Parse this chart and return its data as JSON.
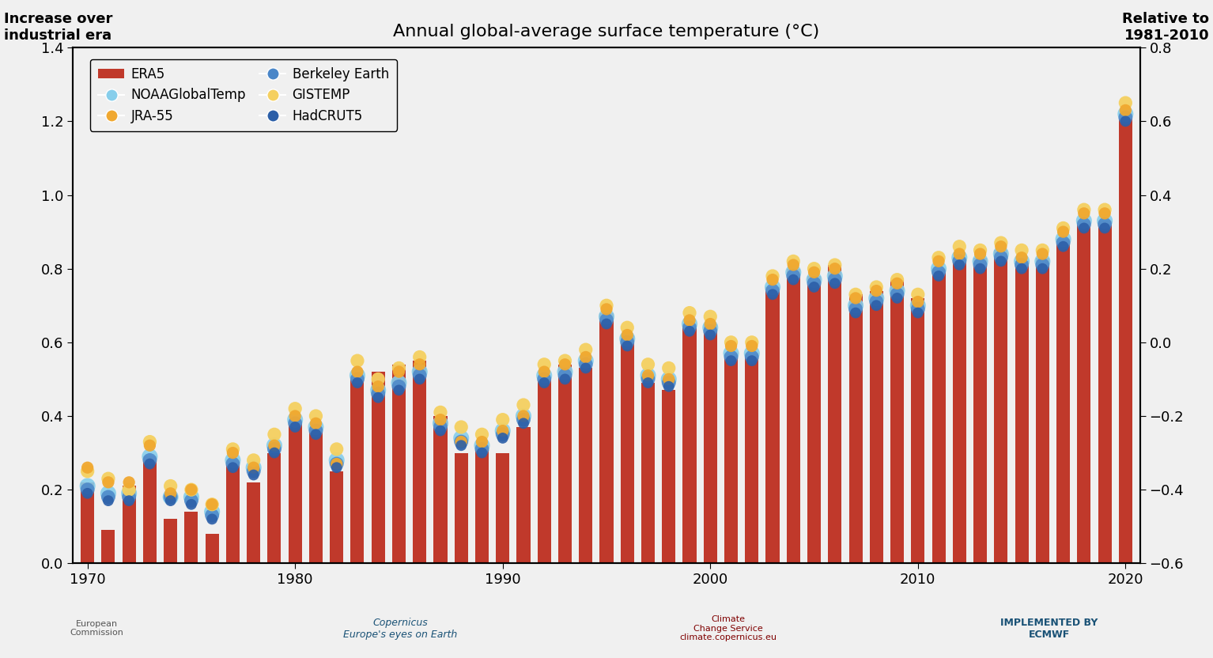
{
  "title": "Annual global-average surface temperature (°C)",
  "ylabel_left": "Increase over\nindustrial era",
  "ylabel_right": "Relative to\n1981-2010",
  "background_color": "#f0f0f0",
  "years": [
    1970,
    1971,
    1972,
    1973,
    1974,
    1975,
    1976,
    1977,
    1978,
    1979,
    1980,
    1981,
    1982,
    1983,
    1984,
    1985,
    1986,
    1987,
    1988,
    1989,
    1990,
    1991,
    1992,
    1993,
    1994,
    1995,
    1996,
    1997,
    1998,
    1999,
    2000,
    2001,
    2002,
    2003,
    2004,
    2005,
    2006,
    2007,
    2008,
    2009,
    2010,
    2011,
    2012,
    2013,
    2014,
    2015,
    2016,
    2017,
    2018,
    2019,
    2020
  ],
  "era5": [
    0.22,
    0.09,
    0.21,
    0.29,
    0.12,
    0.14,
    0.08,
    0.28,
    0.22,
    0.3,
    0.39,
    0.37,
    0.25,
    0.51,
    0.52,
    0.54,
    0.55,
    0.4,
    0.3,
    0.32,
    0.3,
    0.37,
    0.5,
    0.54,
    0.53,
    0.68,
    0.62,
    0.49,
    0.47,
    0.65,
    0.65,
    0.57,
    0.57,
    0.75,
    0.8,
    0.78,
    0.81,
    0.73,
    0.74,
    0.77,
    0.72,
    0.8,
    0.83,
    0.83,
    0.85,
    0.82,
    0.83,
    0.88,
    0.93,
    0.93,
    1.22
  ],
  "jra55": [
    0.26,
    0.22,
    0.22,
    0.32,
    0.19,
    0.2,
    0.16,
    0.3,
    0.26,
    0.32,
    0.4,
    0.38,
    0.27,
    0.52,
    0.48,
    0.52,
    0.54,
    0.39,
    0.33,
    0.33,
    0.36,
    0.4,
    0.52,
    0.54,
    0.56,
    0.69,
    0.62,
    0.51,
    0.5,
    0.66,
    0.65,
    0.59,
    0.59,
    0.77,
    0.81,
    0.79,
    0.8,
    0.72,
    0.74,
    0.76,
    0.71,
    0.82,
    0.84,
    0.84,
    0.86,
    0.83,
    0.84,
    0.9,
    0.95,
    0.95,
    1.23
  ],
  "gistemp": [
    0.25,
    0.23,
    0.2,
    0.33,
    0.21,
    0.2,
    0.16,
    0.31,
    0.28,
    0.35,
    0.42,
    0.4,
    0.31,
    0.55,
    0.5,
    0.53,
    0.56,
    0.41,
    0.37,
    0.35,
    0.39,
    0.43,
    0.54,
    0.55,
    0.58,
    0.7,
    0.64,
    0.54,
    0.53,
    0.68,
    0.67,
    0.6,
    0.6,
    0.78,
    0.82,
    0.8,
    0.81,
    0.73,
    0.75,
    0.77,
    0.73,
    0.83,
    0.86,
    0.85,
    0.87,
    0.85,
    0.85,
    0.91,
    0.96,
    0.96,
    1.25
  ],
  "noaa": [
    0.21,
    0.19,
    0.19,
    0.29,
    0.18,
    0.18,
    0.14,
    0.28,
    0.26,
    0.32,
    0.39,
    0.37,
    0.28,
    0.51,
    0.47,
    0.49,
    0.52,
    0.38,
    0.34,
    0.32,
    0.36,
    0.4,
    0.51,
    0.52,
    0.55,
    0.67,
    0.61,
    0.51,
    0.5,
    0.65,
    0.64,
    0.57,
    0.57,
    0.75,
    0.79,
    0.77,
    0.78,
    0.7,
    0.72,
    0.74,
    0.7,
    0.8,
    0.83,
    0.82,
    0.84,
    0.82,
    0.82,
    0.88,
    0.93,
    0.93,
    1.22
  ],
  "berkeley": [
    0.2,
    0.18,
    0.18,
    0.28,
    0.18,
    0.17,
    0.13,
    0.27,
    0.25,
    0.31,
    0.38,
    0.36,
    0.27,
    0.5,
    0.46,
    0.48,
    0.51,
    0.37,
    0.33,
    0.31,
    0.35,
    0.39,
    0.5,
    0.51,
    0.54,
    0.66,
    0.6,
    0.5,
    0.49,
    0.64,
    0.63,
    0.56,
    0.56,
    0.74,
    0.78,
    0.76,
    0.77,
    0.69,
    0.71,
    0.73,
    0.69,
    0.79,
    0.82,
    0.81,
    0.83,
    0.81,
    0.81,
    0.87,
    0.92,
    0.92,
    1.21
  ],
  "hadcrut5": [
    0.19,
    0.17,
    0.17,
    0.27,
    0.17,
    0.16,
    0.12,
    0.26,
    0.24,
    0.3,
    0.37,
    0.35,
    0.26,
    0.49,
    0.45,
    0.47,
    0.5,
    0.36,
    0.32,
    0.3,
    0.34,
    0.38,
    0.49,
    0.5,
    0.53,
    0.65,
    0.59,
    0.49,
    0.48,
    0.63,
    0.62,
    0.55,
    0.55,
    0.73,
    0.77,
    0.75,
    0.76,
    0.68,
    0.7,
    0.72,
    0.68,
    0.78,
    0.81,
    0.8,
    0.82,
    0.8,
    0.8,
    0.86,
    0.91,
    0.91,
    1.2
  ],
  "bar_color": "#c0392b",
  "jra55_color": "#f0a830",
  "gistemp_color": "#f5d060",
  "noaa_color": "#87ceeb",
  "berkeley_color": "#4a86c8",
  "hadcrut5_color": "#2c5fa8",
  "ylim_left": [
    0.0,
    1.4
  ],
  "ylim_right": [
    -0.6,
    0.8
  ],
  "xticks": [
    1970,
    1980,
    1990,
    2000,
    2010,
    2020
  ],
  "yticks_left": [
    0.0,
    0.2,
    0.4,
    0.6,
    0.8,
    1.0,
    1.2,
    1.4
  ],
  "yticks_right": [
    -0.6,
    -0.4,
    -0.2,
    0.0,
    0.2,
    0.4,
    0.6,
    0.8
  ]
}
